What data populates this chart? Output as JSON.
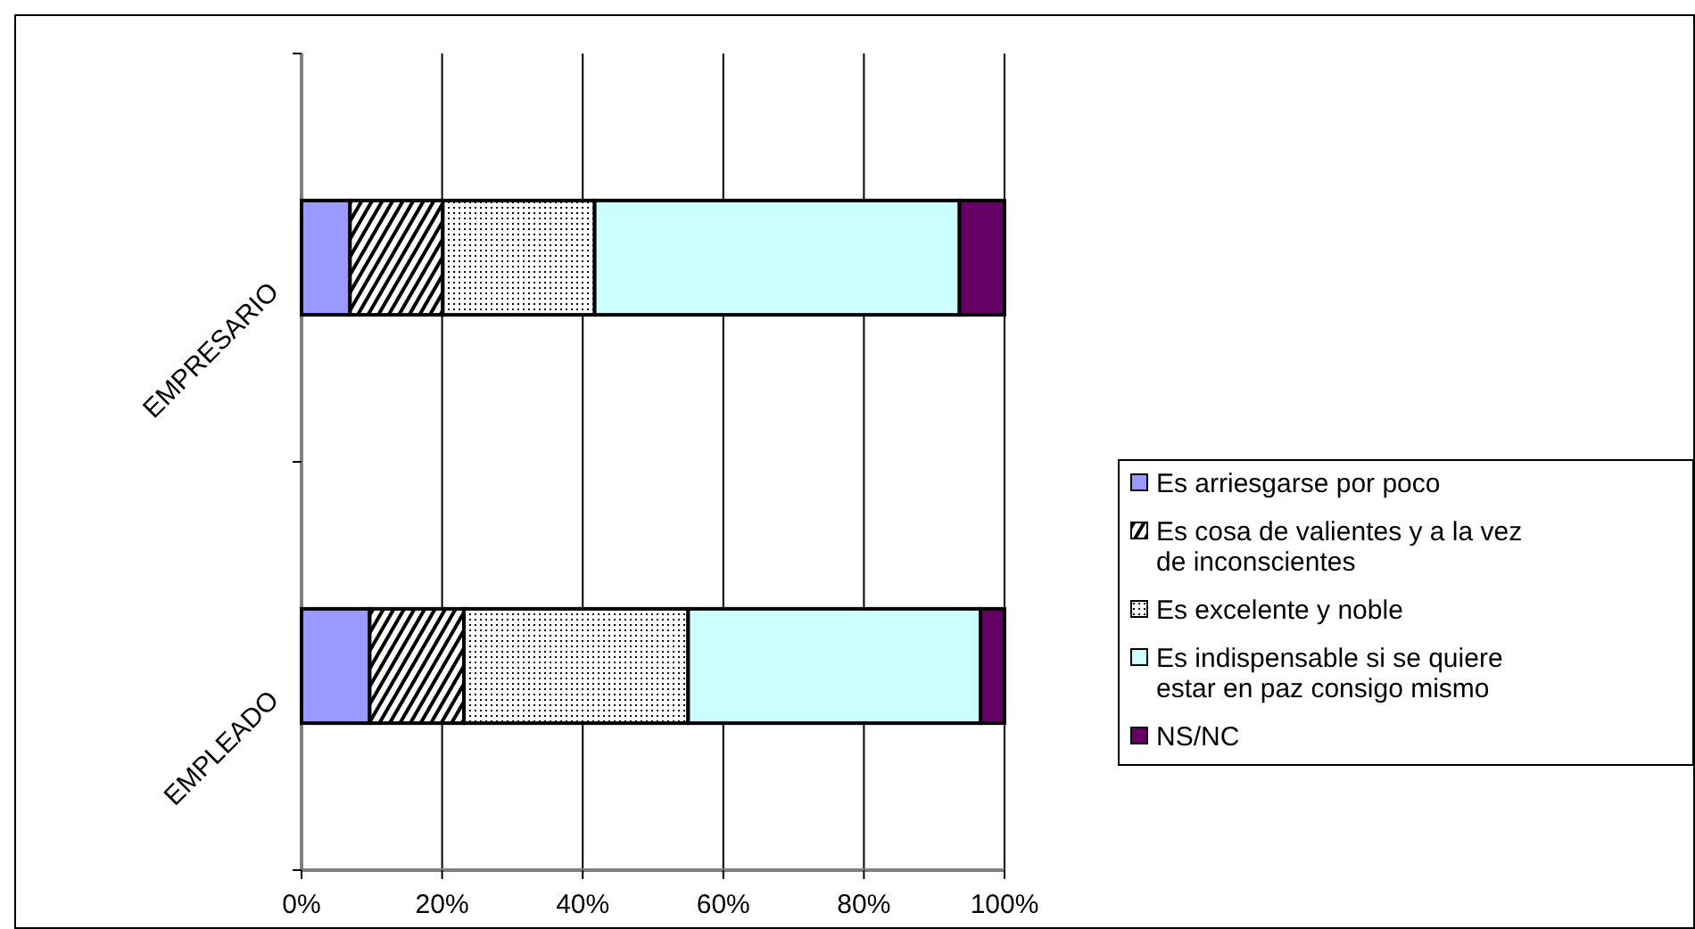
{
  "chart_data": {
    "type": "bar",
    "orientation": "horizontal",
    "stacked": true,
    "categories": [
      "EMPRESARIO",
      "EMPLEADO"
    ],
    "series": [
      {
        "name": "Es arriesgarse por poco",
        "color": "#9999ff",
        "values": [
          6.9,
          9.7
        ]
      },
      {
        "name": "Es cosa de valientes y a la vez de inconscientes",
        "color": "#000000",
        "values": [
          13.2,
          13.4
        ]
      },
      {
        "name": "Es excelente y noble",
        "color": "#000000",
        "values": [
          21.6,
          31.9
        ]
      },
      {
        "name": "Es indispensable si se quiere estar en paz consigo mismo",
        "color": "#ccffff",
        "values": [
          51.9,
          41.6
        ]
      },
      {
        "name": "NS/NC",
        "color": "#660066",
        "values": [
          6.4,
          3.4
        ]
      }
    ],
    "xlim": [
      0,
      100
    ],
    "xticks": [
      {
        "value": 0,
        "label": "0%"
      },
      {
        "value": 20,
        "label": "20%"
      },
      {
        "value": 40,
        "label": "40%"
      },
      {
        "value": 60,
        "label": "60%"
      },
      {
        "value": 80,
        "label": "80%"
      },
      {
        "value": 100,
        "label": "100%"
      }
    ],
    "grid": "x",
    "legend": "right"
  }
}
